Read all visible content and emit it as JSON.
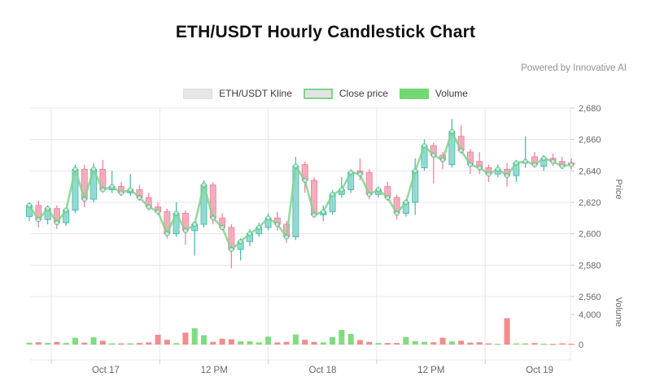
{
  "title": "ETH/USDT Hourly Candlestick Chart",
  "powered_by": "Powered by Innovative AI",
  "legend": {
    "kline": "ETH/USDT Kline",
    "close_price": "Close price",
    "volume": "Volume"
  },
  "chart_data": {
    "type": "candlestick",
    "title": "ETH/USDT Hourly Candlestick Chart",
    "x_tick_labels": [
      "Oct 17",
      "12 PM",
      "Oct 18",
      "12 PM",
      "Oct 19"
    ],
    "price_axis": {
      "label": "Price",
      "min": 2560,
      "max": 2680,
      "tick_labels": [
        "2,680",
        "2,660",
        "2,640",
        "2,620",
        "2,600",
        "2,580",
        "2,560"
      ],
      "tick_values": [
        2680,
        2660,
        2640,
        2620,
        2600,
        2580,
        2560
      ],
      "position": "right"
    },
    "volume_axis": {
      "label": "Volume",
      "tick_labels": [
        "4,000",
        "0"
      ],
      "tick_values": [
        4000,
        0
      ],
      "max": 4000,
      "position": "right"
    },
    "grid": true,
    "legend_position": "top-center",
    "series": {
      "kline": {
        "name": "ETH/USDT Kline",
        "open": [
          2611,
          2618,
          2609,
          2616,
          2607,
          2615,
          2641,
          2622,
          2641,
          2628,
          2630,
          2626,
          2628,
          2623,
          2617,
          2614,
          2600,
          2613,
          2602,
          2606,
          2631,
          2610,
          2604,
          2590,
          2595,
          2600,
          2604,
          2610,
          2606,
          2598,
          2644,
          2634,
          2612,
          2614,
          2625,
          2628,
          2640,
          2639,
          2625,
          2630,
          2623,
          2613,
          2620,
          2642,
          2656,
          2650,
          2644,
          2662,
          2652,
          2646,
          2642,
          2638,
          2641,
          2637,
          2645,
          2649,
          2643,
          2648,
          2646,
          2645
        ],
        "high": [
          2620,
          2621,
          2618,
          2618,
          2616,
          2644,
          2644,
          2645,
          2647,
          2640,
          2633,
          2638,
          2631,
          2626,
          2620,
          2616,
          2620,
          2615,
          2608,
          2634,
          2633,
          2613,
          2606,
          2597,
          2603,
          2607,
          2613,
          2614,
          2608,
          2649,
          2646,
          2636,
          2618,
          2628,
          2636,
          2641,
          2648,
          2641,
          2630,
          2633,
          2625,
          2622,
          2648,
          2660,
          2658,
          2652,
          2673,
          2669,
          2654,
          2652,
          2644,
          2644,
          2645,
          2647,
          2662,
          2652,
          2650,
          2651,
          2649,
          2648
        ],
        "low": [
          2608,
          2604,
          2606,
          2603,
          2605,
          2613,
          2617,
          2620,
          2626,
          2626,
          2624,
          2624,
          2621,
          2615,
          2612,
          2597,
          2598,
          2593,
          2586,
          2604,
          2606,
          2602,
          2578,
          2583,
          2592,
          2598,
          2602,
          2602,
          2594,
          2596,
          2626,
          2610,
          2608,
          2612,
          2623,
          2626,
          2634,
          2622,
          2623,
          2621,
          2609,
          2611,
          2612,
          2640,
          2632,
          2641,
          2642,
          2651,
          2638,
          2638,
          2633,
          2636,
          2630,
          2633,
          2642,
          2642,
          2640,
          2643,
          2641,
          2641
        ],
        "close": [
          2618,
          2609,
          2616,
          2607,
          2615,
          2641,
          2622,
          2641,
          2628,
          2630,
          2626,
          2628,
          2623,
          2617,
          2614,
          2600,
          2613,
          2602,
          2606,
          2631,
          2610,
          2604,
          2590,
          2595,
          2600,
          2604,
          2610,
          2606,
          2598,
          2643,
          2634,
          2612,
          2614,
          2625,
          2628,
          2639,
          2638,
          2625,
          2628,
          2623,
          2613,
          2620,
          2640,
          2656,
          2650,
          2647,
          2665,
          2653,
          2644,
          2642,
          2638,
          2641,
          2637,
          2645,
          2646,
          2644,
          2648,
          2646,
          2643,
          2644
        ]
      },
      "close_price": {
        "name": "Close price"
      },
      "volume": {
        "name": "Volume",
        "values": [
          250,
          300,
          200,
          350,
          200,
          900,
          250,
          950,
          500,
          150,
          150,
          150,
          200,
          280,
          1300,
          630,
          180,
          1580,
          2170,
          1230,
          350,
          770,
          700,
          420,
          420,
          280,
          1050,
          280,
          350,
          1330,
          630,
          350,
          280,
          980,
          1930,
          1400,
          600,
          350,
          200,
          200,
          200,
          1000,
          450,
          350,
          300,
          900,
          400,
          500,
          250,
          300,
          150,
          100,
          3500,
          150,
          150,
          200,
          100,
          80,
          150,
          100
        ]
      }
    },
    "colors": {
      "candle_up_fill": "#8fd9d2",
      "candle_up_stroke": "#45b8ac",
      "candle_down_fill": "#f5a9bc",
      "candle_down_stroke": "#ee7f97",
      "close_line": "#7ed688",
      "close_marker_stroke": "#4eb98a",
      "close_marker_fill": "#dff4e3",
      "volume_up": "#72d872",
      "volume_down": "#f28080",
      "grid": "#e7e7e7",
      "axis_text": "#666666",
      "kline_swatch": "#e6e6e6"
    }
  }
}
